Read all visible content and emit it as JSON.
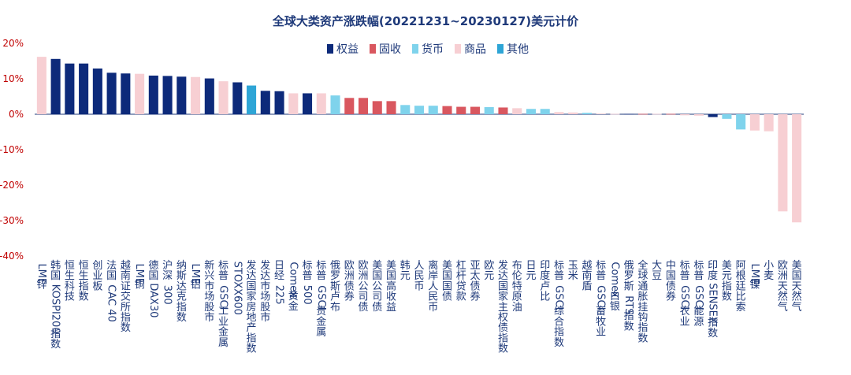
{
  "chart_data": {
    "type": "bar",
    "title": "全球大类资产涨跌幅(20221231~20230127)美元计价",
    "ylim": [
      -40,
      20
    ],
    "yticks": [
      "20%",
      "10%",
      "0%",
      "-10%",
      "-20%",
      "-30%",
      "-40%"
    ],
    "legend_position": "top-center",
    "grid": false,
    "groups": [
      {
        "name": "权益",
        "color": "#0d2a7a"
      },
      {
        "name": "固收",
        "color": "#d9575f"
      },
      {
        "name": "货币",
        "color": "#7fd3ec"
      },
      {
        "name": "商品",
        "color": "#f7cfd3"
      },
      {
        "name": "其他",
        "color": "#2ea5d6"
      }
    ],
    "categories": [
      "LME锌",
      "韩国KOSPI200指数",
      "恒生科技",
      "恒生指数",
      "创业板",
      "法国CAC 40",
      "越南证交所指数",
      "LME铜",
      "德国DAX30",
      "沪深300",
      "纳斯达克指数",
      "LME铝",
      "新兴市场股市",
      "标普GSCI工业金属",
      "STOXX600",
      "发达国家房地产指数",
      "发达市场股市",
      "日经225",
      "Comex黄金",
      "标普500",
      "标普GSCI贵金属",
      "俄罗斯卢布",
      "欧洲债券",
      "欧洲公司债",
      "美国公司债",
      "美国高收益",
      "韩元",
      "人民币",
      "离岸人民币",
      "美国国债",
      "杠杆贷款",
      "亚太债券",
      "欧元",
      "发达国家主权债指数",
      "布伦特原油",
      "日元",
      "印度卢比",
      "标普GSCI综合指数",
      "玉米",
      "越南盾",
      "标普GSCI畜牧业",
      "Comex白银",
      "俄罗斯RTS指数",
      "全球通胀挂钩指数",
      "大豆",
      "中国债券",
      "标普GSCI农业",
      "标普GSCI能源",
      "印度SENSEX指数",
      "美元指数",
      "阿根廷比索",
      "LME镍",
      "小麦",
      "欧洲天然气",
      "美国天然气"
    ],
    "values": [
      16.2,
      15.6,
      14.3,
      14.3,
      12.9,
      11.7,
      11.5,
      11.4,
      10.9,
      10.8,
      10.6,
      10.5,
      10.1,
      9.3,
      9.0,
      8.1,
      6.6,
      6.5,
      5.9,
      5.9,
      5.9,
      5.3,
      4.6,
      4.6,
      3.7,
      3.7,
      2.6,
      2.4,
      2.4,
      2.3,
      2.1,
      2.1,
      2.0,
      1.9,
      1.7,
      1.5,
      1.5,
      0.6,
      0.5,
      0.4,
      0.2,
      0.1,
      0.1,
      0.1,
      0.1,
      0.1,
      -0.3,
      -0.4,
      -0.8,
      -1.3,
      -4.3,
      -4.6,
      -4.8,
      -27.4,
      -30.5
    ],
    "group_of_bar": [
      3,
      0,
      0,
      0,
      0,
      0,
      0,
      3,
      0,
      0,
      0,
      3,
      0,
      3,
      0,
      4,
      0,
      0,
      3,
      0,
      3,
      2,
      1,
      1,
      1,
      1,
      2,
      2,
      2,
      1,
      1,
      1,
      2,
      1,
      3,
      2,
      2,
      3,
      3,
      2,
      3,
      3,
      0,
      1,
      3,
      1,
      3,
      3,
      0,
      2,
      2,
      3,
      3,
      3,
      3
    ]
  }
}
